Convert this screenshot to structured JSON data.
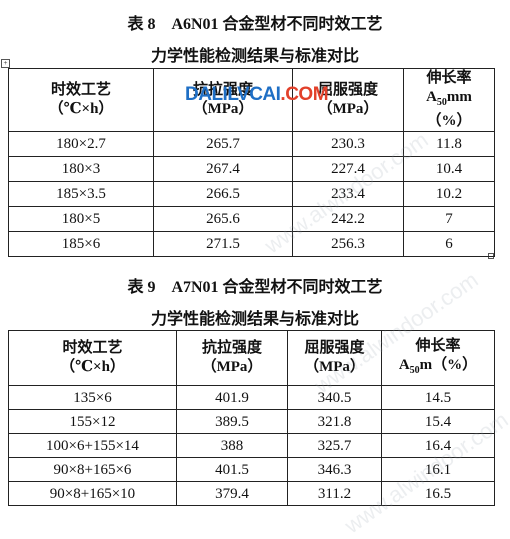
{
  "table8": {
    "title": [
      "表 8　A6N01 合金型材不同时效工艺",
      "力学性能检测结果与标准对比"
    ],
    "header": [
      [
        "时效工艺",
        "（℃×h）"
      ],
      [
        "抗拉强度",
        "（MPa）"
      ],
      [
        "屈服强度",
        "（MPa）"
      ],
      [
        "伸长率",
        {
          "base": "A",
          "sub": "50",
          "tail": "mm"
        },
        "（%）"
      ]
    ],
    "rows": [
      [
        "180×2.7",
        "265.7",
        "230.3",
        "11.8"
      ],
      [
        "180×3",
        "267.4",
        "227.4",
        "10.4"
      ],
      [
        "185×3.5",
        "266.5",
        "233.4",
        "10.2"
      ],
      [
        "180×5",
        "265.6",
        "242.2",
        "7"
      ],
      [
        "185×6",
        "271.5",
        "256.3",
        "6"
      ]
    ]
  },
  "table9": {
    "title": [
      "表 9　A7N01 合金型材不同时效工艺",
      "力学性能检测结果与标准对比"
    ],
    "header": [
      [
        "时效工艺",
        "（℃×h）"
      ],
      [
        "抗拉强度",
        "（MPa）"
      ],
      [
        "屈服强度",
        "（MPa）"
      ],
      [
        "伸长率",
        {
          "base": "A",
          "sub": "50",
          "tail": "m（%）"
        }
      ]
    ],
    "rows": [
      [
        "135×6",
        "401.9",
        "340.5",
        "14.5"
      ],
      [
        "155×12",
        "389.5",
        "321.8",
        "15.4"
      ],
      [
        "100×6+155×14",
        "388",
        "325.7",
        "16.4"
      ],
      [
        "90×8+165×6",
        "401.5",
        "346.3",
        "16.1"
      ],
      [
        "90×8+165×10",
        "379.4",
        "311.2",
        "16.5"
      ]
    ]
  },
  "watermark": {
    "blue": "DALILVCAI",
    "red": ".COM"
  },
  "diagonal_watermarks": [
    "www.alwindoor.com",
    "www.alwindoor.com",
    "www.alwindoor.com"
  ]
}
